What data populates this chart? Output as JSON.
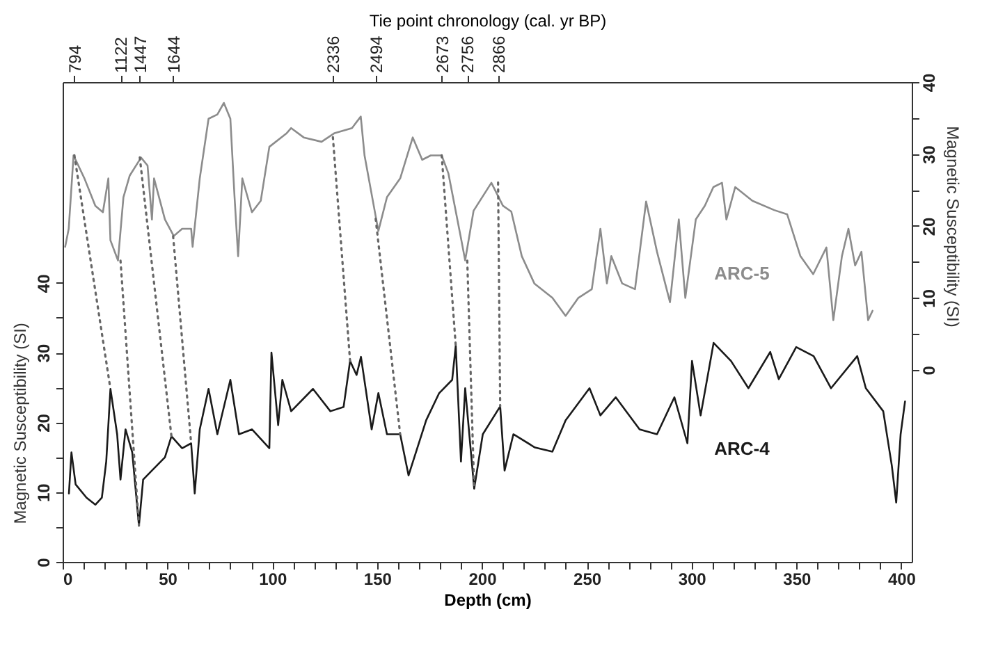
{
  "chart_data": {
    "type": "line",
    "xlabel": "Depth (cm)",
    "ylabel": "Magnetic Susceptibility (SI)",
    "y2label": "Magnetic Susceptibility (SI)",
    "x2label": "Tie point chronology (cal. yr BP)",
    "xlim": [
      0,
      405
    ],
    "xticks": [
      0,
      {
        "value": 10,
        "label": null
      },
      {
        "value": 20,
        "label": null
      },
      {
        "value": 30,
        "label": null
      },
      {
        "value": 40,
        "label": null
      },
      50,
      {
        "value": 60,
        "label": null
      },
      {
        "value": 70,
        "label": null
      },
      {
        "value": 80,
        "label": null
      },
      {
        "value": 90,
        "label": null
      },
      100,
      {
        "value": 110,
        "label": null
      },
      {
        "value": 120,
        "label": null
      },
      {
        "value": 130,
        "label": null
      },
      {
        "value": 140,
        "label": null
      },
      150,
      {
        "value": 160,
        "label": null
      },
      {
        "value": 170,
        "label": null
      },
      {
        "value": 180,
        "label": null
      },
      {
        "value": 190,
        "label": null
      },
      200,
      {
        "value": 210,
        "label": null
      },
      {
        "value": 220,
        "label": null
      },
      {
        "value": 230,
        "label": null
      },
      {
        "value": 240,
        "label": null
      },
      250,
      {
        "value": 260,
        "label": null
      },
      {
        "value": 270,
        "label": null
      },
      {
        "value": 280,
        "label": null
      },
      {
        "value": 290,
        "label": null
      },
      300,
      {
        "value": 310,
        "label": null
      },
      {
        "value": 320,
        "label": null
      },
      {
        "value": 330,
        "label": null
      },
      {
        "value": 340,
        "label": null
      },
      350,
      {
        "value": 360,
        "label": null
      },
      {
        "value": 370,
        "label": null
      },
      {
        "value": 380,
        "label": null
      },
      {
        "value": 390,
        "label": null
      },
      400
    ],
    "annotations": [
      {
        "text": "794",
        "x": 5.6
      },
      {
        "text": "1122",
        "x": 27.6
      },
      {
        "text": "1447",
        "x": 36.8
      },
      {
        "text": "1644",
        "x": 52.7
      },
      {
        "text": "2336",
        "x": 128.9
      },
      {
        "text": "2494",
        "x": 149.3
      },
      {
        "text": "2673",
        "x": 180.8
      },
      {
        "text": "2756",
        "x": 193
      },
      {
        "text": "2866",
        "x": 207.7
      }
    ],
    "ylim": [
      0,
      68.8
    ],
    "yticks": [
      0,
      {
        "value": 5,
        "label": null
      },
      10,
      {
        "value": 15,
        "label": null
      },
      20,
      {
        "value": 25,
        "label": null
      },
      30,
      {
        "value": 35,
        "label": null
      },
      40
    ],
    "y2lim": [
      -26.7,
      40
    ],
    "y2ticks": [
      0,
      {
        "value": 5,
        "label": null
      },
      10,
      {
        "value": 15,
        "label": null
      },
      20,
      {
        "value": 25,
        "label": null
      },
      30,
      {
        "value": 35,
        "label": null
      },
      40
    ],
    "grid": false,
    "marker": "none",
    "line_style": "solid",
    "series": [
      {
        "name": "ARC-5",
        "color": "#8c8c8c",
        "axis": "y2",
        "x": [
          1.2,
          2.9,
          5.2,
          10.4,
          15.6,
          19.2,
          21.8,
          22.8,
          26.4,
          29,
          32,
          37.4,
          40.5,
          42.6,
          43.6,
          48.8,
          53,
          57,
          61.3,
          62,
          65.4,
          69.6,
          73.8,
          76.9,
          80,
          82,
          83.7,
          85.7,
          90.3,
          94.5,
          98.6,
          106.9,
          109,
          115,
          123.5,
          129.7,
          138,
          142.2,
          144,
          150.6,
          154.7,
          161,
          167,
          171.5,
          175.6,
          180.8,
          184,
          190,
          192,
          196,
          204.5,
          210,
          214,
          219,
          225,
          233.6,
          239.9,
          246,
          252.4,
          256.5,
          259.6,
          261.7,
          266.9,
          273,
          278.3,
          283.5,
          289.7,
          293.9,
          297,
          302,
          306.3,
          310.4,
          314.5,
          316.6,
          320.8,
          329,
          339.4,
          345.6,
          351.9,
          358,
          364.3,
          367.6,
          371.7,
          374.8,
          378,
          381,
          384.2,
          386.3
        ],
        "values": [
          17.1,
          19.6,
          29.8,
          26.6,
          22.8,
          21.9,
          26.6,
          18,
          15.2,
          24,
          27,
          29.5,
          28.4,
          20.9,
          26.6,
          20.9,
          18.6,
          19.6,
          19.6,
          17.1,
          26.6,
          34.9,
          35.5,
          37.1,
          34.9,
          24,
          15.8,
          26.6,
          21.9,
          23.5,
          31,
          32.9,
          33.6,
          32.3,
          31.7,
          32.9,
          33.6,
          35.2,
          29.8,
          19.3,
          24,
          26.6,
          32.3,
          29.2,
          29.8,
          29.8,
          27.3,
          18.3,
          15.2,
          22.1,
          26,
          22.8,
          22,
          15.8,
          12,
          10,
          7.5,
          10,
          11.2,
          19.6,
          12,
          15.8,
          12,
          11.2,
          23.4,
          16.4,
          9.4,
          20.9,
          10,
          20.9,
          22.8,
          25.4,
          26,
          20.9,
          25.4,
          23.5,
          22.2,
          21.6,
          15.8,
          13.3,
          17,
          6.9,
          15.8,
          19.6,
          14.5,
          16.4,
          6.9,
          8.2
        ]
      },
      {
        "name": "ARC-4",
        "color": "#1a1a1a",
        "axis": "y",
        "x": [
          3,
          4.2,
          6.2,
          11.4,
          15.6,
          18.7,
          20.8,
          22.8,
          26,
          27.6,
          30,
          33.2,
          36.4,
          38.4,
          42.6,
          48.8,
          51.9,
          57,
          61.3,
          63,
          65.4,
          69.6,
          73.8,
          80,
          84.1,
          90.3,
          98.6,
          99.6,
          102.8,
          104.8,
          109,
          119.4,
          127.7,
          134,
          137.1,
          140.2,
          142.3,
          147.4,
          150.6,
          154.7,
          161,
          165,
          173.4,
          179.6,
          185.8,
          187.5,
          190,
          192,
          196.3,
          200.4,
          208.7,
          210.8,
          215,
          225.3,
          233.6,
          239.9,
          251.3,
          256.5,
          263.8,
          275.2,
          283.5,
          291.8,
          298,
          300.2,
          304.3,
          310.5,
          318.8,
          327.1,
          337.5,
          341.6,
          349.9,
          358.2,
          366.5,
          379,
          383.1,
          391.4,
          395.5,
          397.6,
          399.7,
          401.8
        ],
        "values": [
          9.8,
          15.7,
          11.1,
          9.2,
          8.2,
          9.2,
          14.4,
          24.8,
          18.3,
          11.8,
          19,
          15.7,
          5.2,
          11.8,
          13.1,
          15,
          18,
          16.3,
          17,
          9.8,
          19,
          24.8,
          18.3,
          26.1,
          18.3,
          19,
          16.3,
          30,
          19.6,
          26.1,
          21.6,
          24.8,
          21.6,
          22.2,
          28.8,
          26.8,
          29.4,
          19,
          24.2,
          18.3,
          18.3,
          12.4,
          20.3,
          24.2,
          26.1,
          31,
          14.4,
          24.9,
          10.5,
          18.3,
          22.3,
          13.1,
          18.3,
          16.4,
          15.8,
          20.3,
          24.9,
          21,
          23.6,
          19,
          18.3,
          23.6,
          17,
          28.8,
          21,
          31.4,
          28.8,
          24.9,
          30.1,
          26.2,
          30.8,
          29.5,
          24.9,
          29.5,
          24.9,
          21.6,
          13.8,
          8.5,
          18.3,
          23
        ]
      },
      {
        "type": "line",
        "line_style": "dotted",
        "color": "#666666",
        "x": [
          5.6,
          22.8
        ],
        "values": [
          58.3,
          24.8
        ]
      },
      {
        "type": "line",
        "line_style": "dotted",
        "color": "#666666",
        "x": [
          27.6,
          36.4
        ],
        "values": [
          43.2,
          5.2
        ]
      },
      {
        "type": "line",
        "line_style": "dotted",
        "color": "#666666",
        "x": [
          36.8,
          51.9
        ],
        "values": [
          58,
          18
        ]
      },
      {
        "type": "line",
        "line_style": "dotted",
        "color": "#666666",
        "x": [
          52.7,
          61.3
        ],
        "values": [
          46.7,
          17
        ]
      },
      {
        "type": "line",
        "line_style": "dotted",
        "color": "#666666",
        "x": [
          128.9,
          137.1
        ],
        "values": [
          60.9,
          28.8
        ]
      },
      {
        "type": "line",
        "line_style": "dotted",
        "color": "#666666",
        "x": [
          149.3,
          161
        ],
        "values": [
          49.2,
          18.3
        ]
      },
      {
        "type": "line",
        "line_style": "dotted",
        "color": "#666666",
        "x": [
          180.8,
          187.5
        ],
        "values": [
          58.3,
          31
        ]
      },
      {
        "type": "line",
        "line_style": "dotted",
        "color": "#666666",
        "x": [
          193,
          196.3
        ],
        "values": [
          43.2,
          10.5
        ]
      },
      {
        "type": "line",
        "line_style": "dotted",
        "color": "#666666",
        "x": [
          207.7,
          208.7
        ],
        "values": [
          54.4,
          22.3
        ]
      }
    ]
  }
}
